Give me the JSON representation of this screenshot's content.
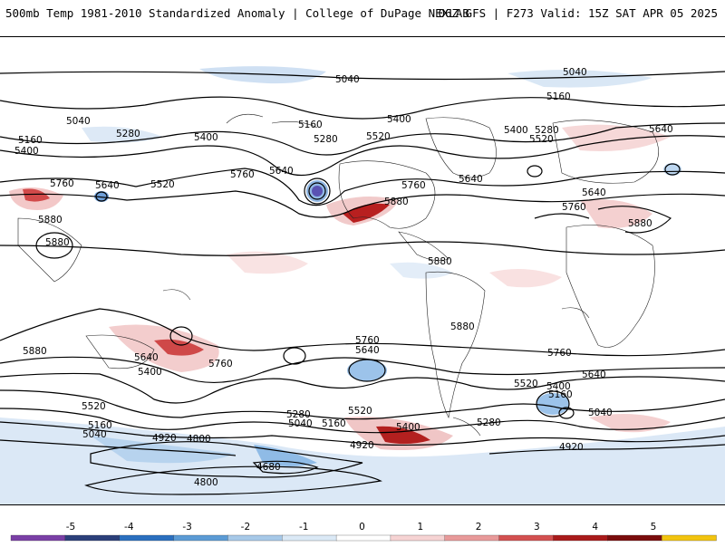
{
  "header": {
    "title_left": "500mb Temp 1981-2010 Standardized Anomaly | College of DuPage NEXLAB",
    "title_right": "06Z GFS | F273 Valid: 15Z SAT APR 05 2025"
  },
  "map": {
    "contour_labels": [
      {
        "text": "5040"
      },
      {
        "text": "5040"
      },
      {
        "text": "5160"
      },
      {
        "text": "5040"
      },
      {
        "text": "5160"
      },
      {
        "text": "5280"
      },
      {
        "text": "5400"
      },
      {
        "text": "5400"
      },
      {
        "text": "5160"
      },
      {
        "text": "5400"
      },
      {
        "text": "5280"
      },
      {
        "text": "5520"
      },
      {
        "text": "5400"
      },
      {
        "text": "5280"
      },
      {
        "text": "5520"
      },
      {
        "text": "5640"
      },
      {
        "text": "5760"
      },
      {
        "text": "5640"
      },
      {
        "text": "5520"
      },
      {
        "text": "5760"
      },
      {
        "text": "5640"
      },
      {
        "text": "5880"
      },
      {
        "text": "5760"
      },
      {
        "text": "5640"
      },
      {
        "text": "5640"
      },
      {
        "text": "5760"
      },
      {
        "text": "5880"
      },
      {
        "text": "5880"
      },
      {
        "text": "5880"
      },
      {
        "text": "5880"
      },
      {
        "text": "5880"
      },
      {
        "text": "5880"
      },
      {
        "text": "5760"
      },
      {
        "text": "5640"
      },
      {
        "text": "5640"
      },
      {
        "text": "5760"
      },
      {
        "text": "5400"
      },
      {
        "text": "5760"
      },
      {
        "text": "5640"
      },
      {
        "text": "5520"
      },
      {
        "text": "5400"
      },
      {
        "text": "5160"
      },
      {
        "text": "5040"
      },
      {
        "text": "5520"
      },
      {
        "text": "5160"
      },
      {
        "text": "5040"
      },
      {
        "text": "5280"
      },
      {
        "text": "5040"
      },
      {
        "text": "5160"
      },
      {
        "text": "5520"
      },
      {
        "text": "5400"
      },
      {
        "text": "5280"
      },
      {
        "text": "4920"
      },
      {
        "text": "4800"
      },
      {
        "text": "4920"
      },
      {
        "text": "4920"
      },
      {
        "text": "4680"
      },
      {
        "text": "4800"
      }
    ]
  },
  "colorbar": {
    "tick_labels": [
      "-5",
      "-4",
      "-3",
      "-2",
      "-1",
      "0",
      "1",
      "2",
      "3",
      "4",
      "5"
    ],
    "colors": [
      "#7a3fa6",
      "#2b3f7a",
      "#2a6fbf",
      "#5b9bd5",
      "#a7c9e8",
      "#dbe9f6",
      "#ffffff",
      "#f6d3d3",
      "#e89a9a",
      "#d35050",
      "#a91a1a",
      "#7a0c0c",
      "#f2c40f"
    ]
  }
}
